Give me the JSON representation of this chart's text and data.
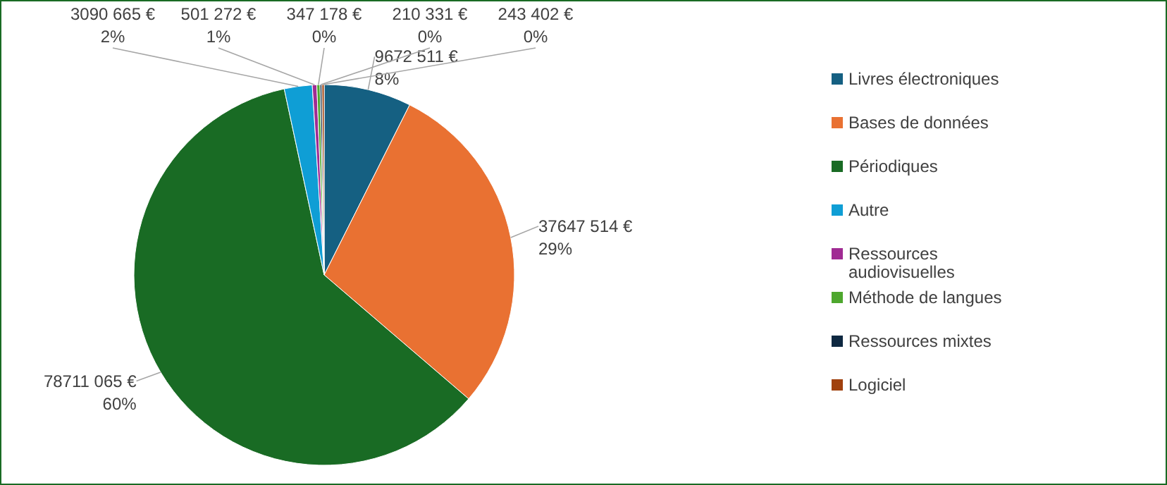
{
  "chart_data": {
    "type": "pie",
    "categories": [
      "Livres électroniques",
      "Bases de données",
      "Périodiques",
      "Autre",
      "Ressources audiovisuelles",
      "Méthode de langues",
      "Ressources mixtes",
      "Logiciel"
    ],
    "values": [
      9672511,
      37647514,
      78711065,
      3090665,
      501272,
      347178,
      210331,
      243402
    ],
    "colors": [
      "#156082",
      "#e97132",
      "#196b24",
      "#0f9ed5",
      "#a02b93",
      "#4ea72e",
      "#0e2841",
      "#a0410e"
    ],
    "value_labels": [
      "9672 511 €\n8%",
      "37647 514 €\n29%",
      "78711 065 €\n60%",
      "3090 665 €\n2%",
      "501 272 €\n1%",
      "347 178 €\n0%",
      "210 331 €\n0%",
      "243 402 €\n0%"
    ],
    "legend": "right"
  }
}
